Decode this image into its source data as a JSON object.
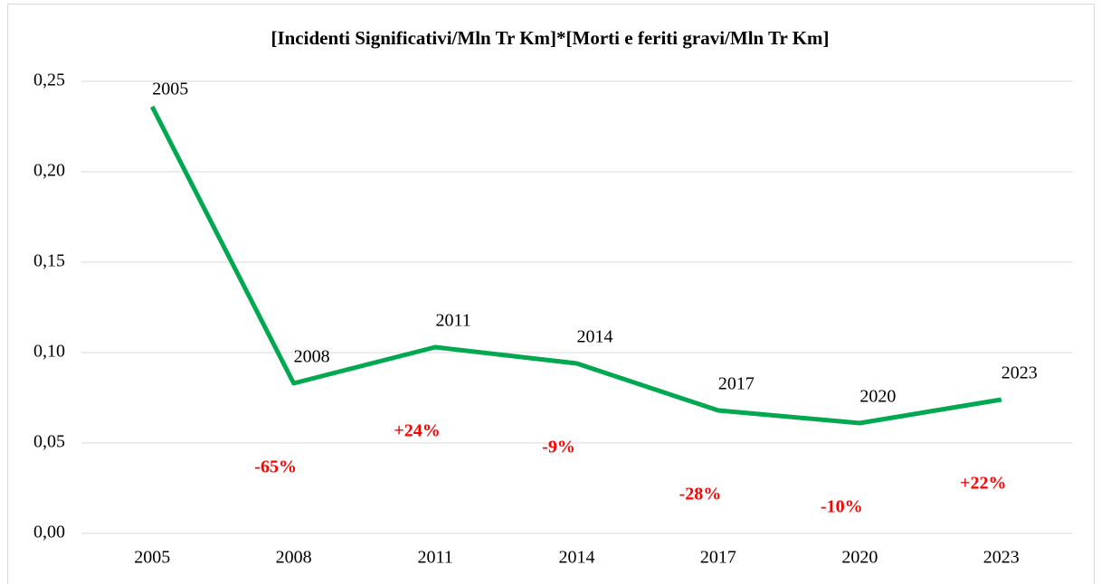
{
  "chart_data": {
    "type": "line",
    "title": "[Incidenti Significativi/Mln Tr Km]*[Morti e feriti gravi/Mln Tr Km]",
    "categories": [
      "2005",
      "2008",
      "2011",
      "2014",
      "2017",
      "2020",
      "2023"
    ],
    "series": [
      {
        "name": "Indice",
        "color": "#00a84f",
        "values": [
          0.236,
          0.083,
          0.103,
          0.094,
          0.068,
          0.061,
          0.074
        ]
      }
    ],
    "annotations": [
      "-65%",
      "+24%",
      "-9%",
      "-28%",
      "-10%",
      "+22%"
    ],
    "annotation_color": "#ff0000",
    "ylim": [
      0,
      0.25
    ],
    "yticks": [
      {
        "value": 0,
        "label": "0,00"
      },
      {
        "value": 0.05,
        "label": "0,05"
      },
      {
        "value": 0.1,
        "label": "0,10"
      },
      {
        "value": 0.15,
        "label": "0,15"
      },
      {
        "value": 0.2,
        "label": "0,20"
      },
      {
        "value": 0.25,
        "label": "0,25"
      }
    ],
    "grid": true
  }
}
